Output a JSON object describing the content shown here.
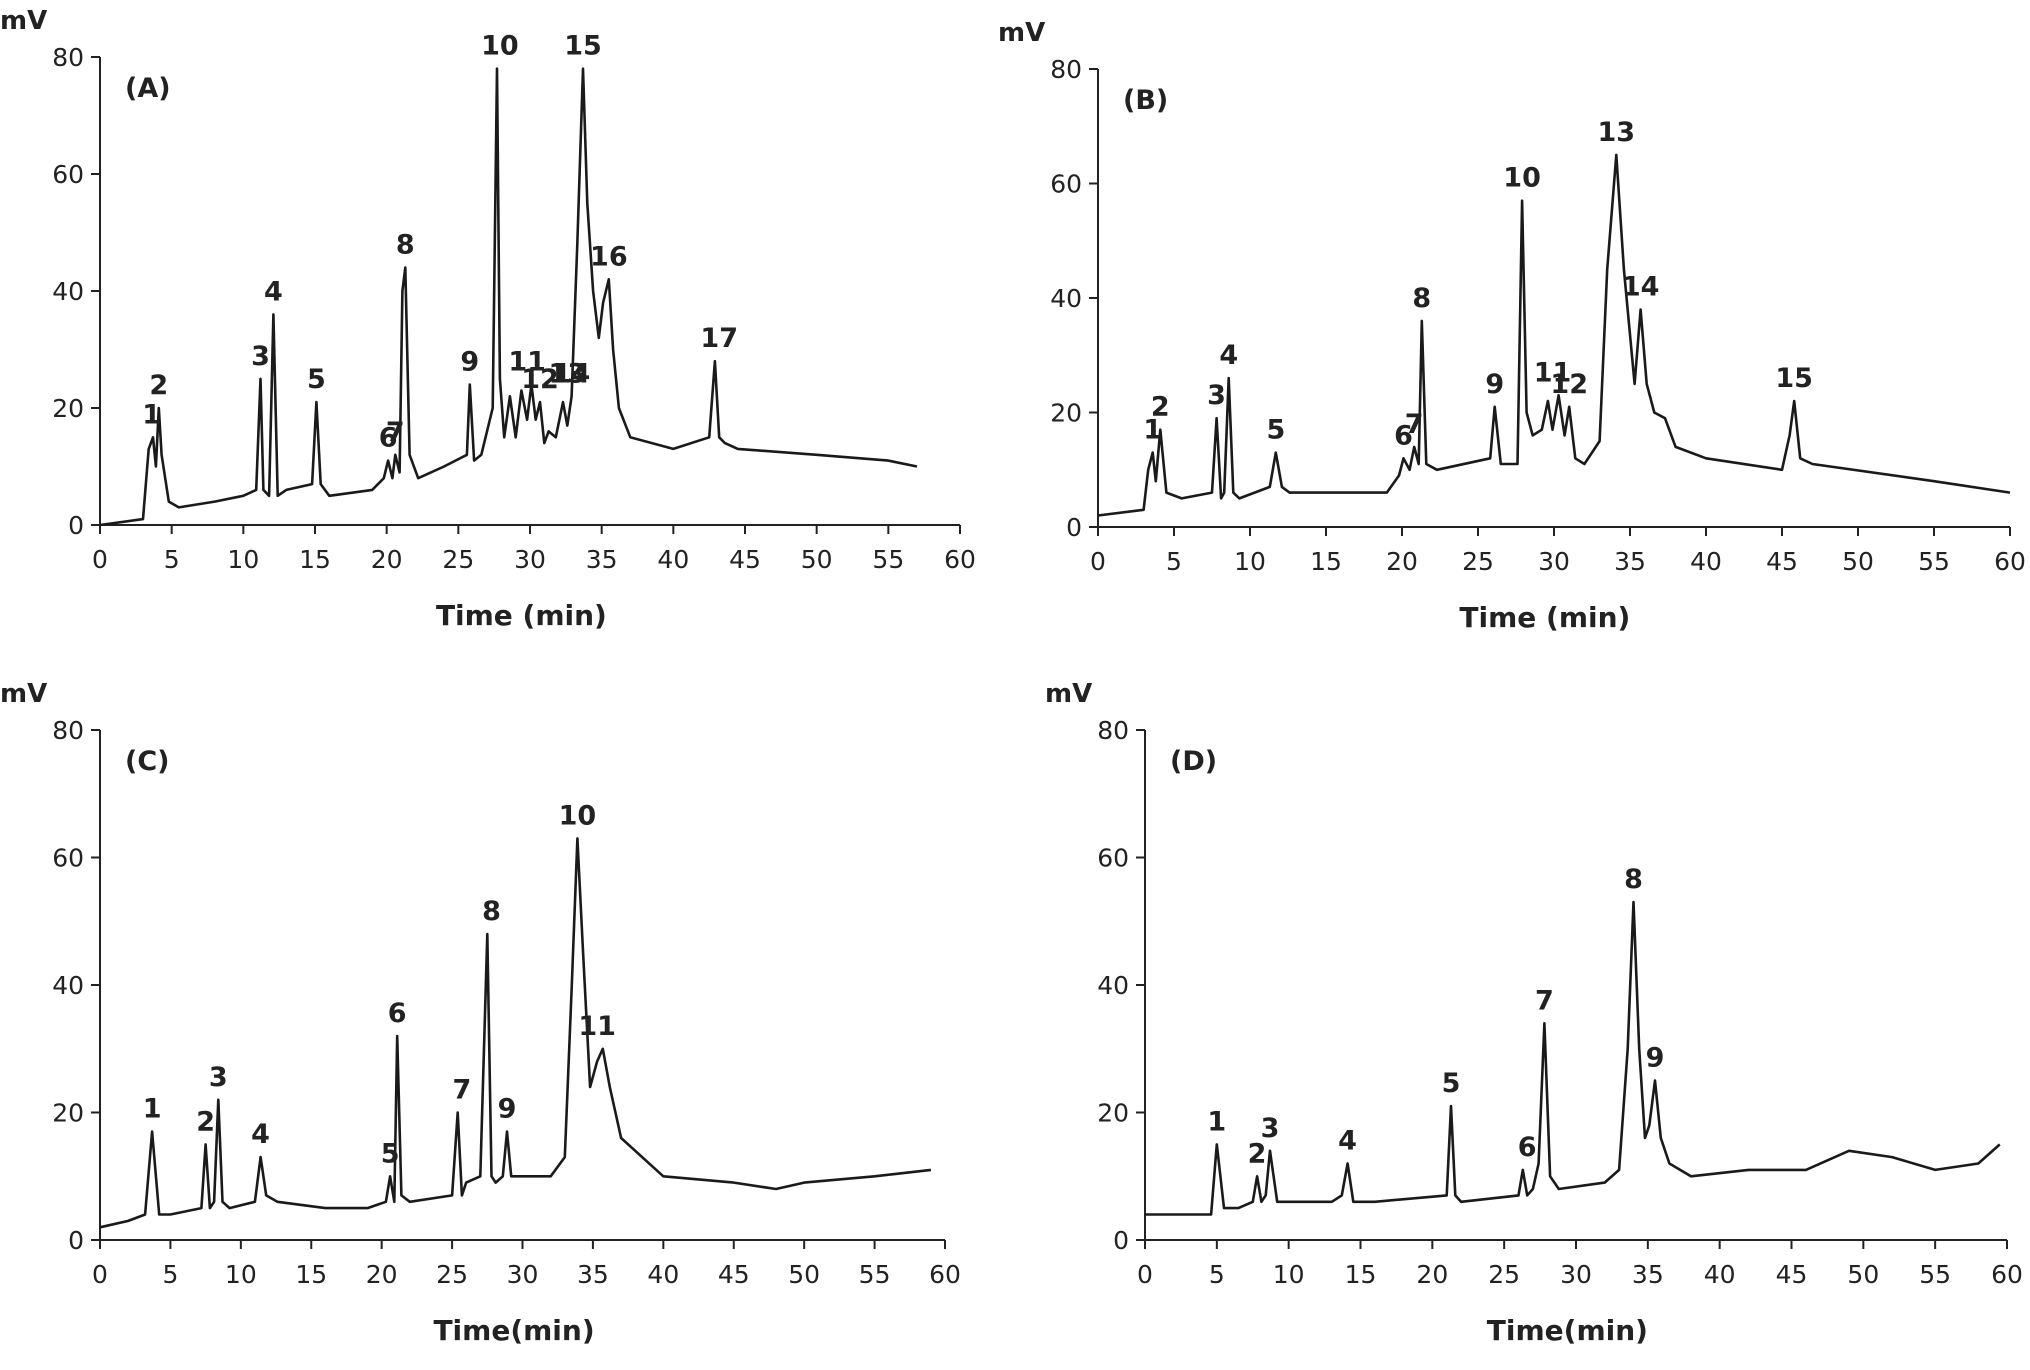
{
  "chart_data": [
    {
      "type": "line",
      "panel_label": "(A)",
      "ylabel": "mV",
      "xlabel": "Time (min)",
      "xlim": [
        0,
        60
      ],
      "ylim": [
        0,
        80
      ],
      "xticks": [
        "0",
        "5",
        "10",
        "15",
        "20",
        "25",
        "30",
        "35",
        "40",
        "45",
        "50",
        "55",
        "60"
      ],
      "yticks": [
        "0",
        "20",
        "40",
        "60",
        "80"
      ],
      "series": [
        {
          "name": "chromatogram A",
          "x": [
            0,
            3,
            3.4,
            3.7,
            3.9,
            4.1,
            4.3,
            4.8,
            5.5,
            8,
            10,
            10.9,
            11.2,
            11.4,
            11.8,
            12.1,
            12.4,
            13,
            14.8,
            15.1,
            15.4,
            16,
            19,
            19.8,
            20.1,
            20.4,
            20.6,
            20.9,
            21.1,
            21.3,
            21.6,
            22.2,
            24,
            25.6,
            25.8,
            26.1,
            26.6,
            27.4,
            27.7,
            27.9,
            28.2,
            28.6,
            29,
            29.4,
            29.8,
            30.1,
            30.4,
            30.7,
            31,
            31.3,
            31.8,
            32.3,
            32.6,
            32.9,
            33.3,
            33.7,
            34,
            34.4,
            34.8,
            35.1,
            35.5,
            35.8,
            36.2,
            37,
            40,
            42.5,
            42.9,
            43.2,
            43.6,
            44.5,
            50,
            55,
            57
          ],
          "y": [
            0,
            1,
            13,
            15,
            10,
            20,
            12,
            4,
            3,
            4,
            5,
            6,
            25,
            6,
            5,
            36,
            5,
            6,
            7,
            21,
            7,
            5,
            6,
            8,
            11,
            8,
            12,
            9,
            40,
            44,
            12,
            8,
            10,
            12,
            24,
            11,
            12,
            20,
            78,
            25,
            15,
            22,
            15,
            23,
            18,
            24,
            18,
            21,
            14,
            16,
            15,
            21,
            17,
            22,
            48,
            78,
            55,
            40,
            32,
            38,
            42,
            30,
            20,
            15,
            13,
            15,
            28,
            15,
            14,
            13,
            12,
            11,
            10
          ],
          "peaks": [
            {
              "label": "1",
              "x": 3.6,
              "y": 15
            },
            {
              "label": "2",
              "x": 4.1,
              "y": 20
            },
            {
              "label": "3",
              "x": 11.2,
              "y": 25
            },
            {
              "label": "4",
              "x": 12.1,
              "y": 36
            },
            {
              "label": "5",
              "x": 15.1,
              "y": 21
            },
            {
              "label": "6",
              "x": 20.1,
              "y": 11
            },
            {
              "label": "7",
              "x": 20.6,
              "y": 12
            },
            {
              "label": "8",
              "x": 21.3,
              "y": 44
            },
            {
              "label": "9",
              "x": 25.8,
              "y": 24
            },
            {
              "label": "10",
              "x": 27.9,
              "y": 78
            },
            {
              "label": "11",
              "x": 29.8,
              "y": 24
            },
            {
              "label": "12",
              "x": 30.7,
              "y": 21
            },
            {
              "label": "13",
              "x": 32.6,
              "y": 22
            },
            {
              "label": "14",
              "x": 32.9,
              "y": 22
            },
            {
              "label": "15",
              "x": 33.7,
              "y": 78
            },
            {
              "label": "16",
              "x": 35.5,
              "y": 42
            },
            {
              "label": "17",
              "x": 43.2,
              "y": 28
            }
          ]
        }
      ]
    },
    {
      "type": "line",
      "panel_label": "(B)",
      "ylabel": "mV",
      "xlabel": "Time (min)",
      "xlim": [
        0,
        60
      ],
      "ylim": [
        0,
        80
      ],
      "xticks": [
        "0",
        "5",
        "10",
        "15",
        "20",
        "25",
        "30",
        "35",
        "40",
        "45",
        "50",
        "55",
        "60"
      ],
      "yticks": [
        "0",
        "20",
        "40",
        "60",
        "80"
      ],
      "series": [
        {
          "name": "chromatogram B",
          "x": [
            0,
            3,
            3.3,
            3.6,
            3.8,
            4.1,
            4.5,
            5.5,
            7.5,
            7.8,
            8.1,
            8.3,
            8.6,
            8.9,
            9.3,
            11.3,
            11.7,
            12.1,
            12.6,
            19,
            19.8,
            20.1,
            20.5,
            20.8,
            21.1,
            21.3,
            21.6,
            22.3,
            25.8,
            26.1,
            26.5,
            27.6,
            27.9,
            28.2,
            28.6,
            29.2,
            29.6,
            29.9,
            30.3,
            30.7,
            31,
            31.4,
            32,
            33,
            33.5,
            34.1,
            34.6,
            35.3,
            35.7,
            36.1,
            36.6,
            37.3,
            38,
            40,
            45,
            45.5,
            45.8,
            46.2,
            47,
            55,
            60
          ],
          "y": [
            2,
            3,
            10,
            13,
            8,
            17,
            6,
            5,
            6,
            19,
            5,
            6,
            26,
            6,
            5,
            7,
            13,
            7,
            6,
            6,
            9,
            12,
            10,
            14,
            11,
            36,
            11,
            10,
            12,
            21,
            11,
            11,
            57,
            20,
            16,
            17,
            22,
            17,
            23,
            16,
            21,
            12,
            11,
            15,
            45,
            65,
            45,
            25,
            38,
            25,
            20,
            19,
            14,
            12,
            10,
            16,
            22,
            12,
            11,
            8,
            6
          ],
          "peaks": [
            {
              "label": "1",
              "x": 3.6,
              "y": 13
            },
            {
              "label": "2",
              "x": 4.1,
              "y": 17
            },
            {
              "label": "3",
              "x": 7.8,
              "y": 19
            },
            {
              "label": "4",
              "x": 8.6,
              "y": 26
            },
            {
              "label": "5",
              "x": 11.7,
              "y": 13
            },
            {
              "label": "6",
              "x": 20.1,
              "y": 12
            },
            {
              "label": "7",
              "x": 20.8,
              "y": 14
            },
            {
              "label": "8",
              "x": 21.3,
              "y": 36
            },
            {
              "label": "9",
              "x": 26.1,
              "y": 21
            },
            {
              "label": "10",
              "x": 27.9,
              "y": 57
            },
            {
              "label": "11",
              "x": 29.9,
              "y": 23
            },
            {
              "label": "12",
              "x": 31,
              "y": 21
            },
            {
              "label": "13",
              "x": 34.1,
              "y": 65
            },
            {
              "label": "14",
              "x": 35.7,
              "y": 38
            },
            {
              "label": "15",
              "x": 45.8,
              "y": 22
            }
          ]
        }
      ]
    },
    {
      "type": "line",
      "panel_label": "(C)",
      "ylabel": "mV",
      "xlabel": "Time(min)",
      "xlim": [
        0,
        60
      ],
      "ylim": [
        0,
        80
      ],
      "xticks": [
        "0",
        "5",
        "10",
        "15",
        "20",
        "25",
        "30",
        "35",
        "40",
        "45",
        "50",
        "55",
        "60"
      ],
      "yticks": [
        "0",
        "20",
        "40",
        "60",
        "80"
      ],
      "series": [
        {
          "name": "chromatogram C",
          "x": [
            0,
            2,
            3.2,
            3.7,
            4.2,
            5,
            7.2,
            7.5,
            7.8,
            8.1,
            8.4,
            8.7,
            9.2,
            11,
            11.4,
            11.8,
            12.6,
            16,
            19,
            20.3,
            20.6,
            20.9,
            21.1,
            21.4,
            22,
            25,
            25.4,
            25.7,
            26,
            27,
            27.5,
            27.8,
            28.1,
            28.6,
            28.9,
            29.2,
            29.8,
            32,
            33,
            33.5,
            33.9,
            34.3,
            34.8,
            35.3,
            35.7,
            36.2,
            37,
            40,
            45,
            48,
            50,
            55,
            59
          ],
          "y": [
            2,
            3,
            4,
            17,
            4,
            4,
            5,
            15,
            5,
            6,
            22,
            6,
            5,
            6,
            13,
            7,
            6,
            5,
            5,
            6,
            10,
            6,
            32,
            7,
            6,
            7,
            20,
            7,
            9,
            10,
            48,
            10,
            9,
            10,
            17,
            10,
            10,
            10,
            13,
            40,
            63,
            45,
            24,
            28,
            30,
            24,
            16,
            10,
            9,
            8,
            9,
            10,
            11
          ],
          "peaks": [
            {
              "label": "1",
              "x": 3.7,
              "y": 17
            },
            {
              "label": "2",
              "x": 7.5,
              "y": 15
            },
            {
              "label": "3",
              "x": 8.4,
              "y": 22
            },
            {
              "label": "4",
              "x": 11.4,
              "y": 13
            },
            {
              "label": "5",
              "x": 20.6,
              "y": 10
            },
            {
              "label": "6",
              "x": 21.1,
              "y": 32
            },
            {
              "label": "7",
              "x": 25.7,
              "y": 20
            },
            {
              "label": "8",
              "x": 27.8,
              "y": 48
            },
            {
              "label": "9",
              "x": 28.9,
              "y": 17
            },
            {
              "label": "10",
              "x": 33.9,
              "y": 63
            },
            {
              "label": "11",
              "x": 35.3,
              "y": 30
            }
          ]
        }
      ]
    },
    {
      "type": "line",
      "panel_label": "(D)",
      "ylabel": "mV",
      "xlabel": "Time(min)",
      "xlim": [
        0,
        60
      ],
      "ylim": [
        0,
        80
      ],
      "xticks": [
        "0",
        "5",
        "10",
        "15",
        "20",
        "25",
        "30",
        "35",
        "40",
        "45",
        "50",
        "55",
        "60"
      ],
      "yticks": [
        "0",
        "20",
        "40",
        "60",
        "80"
      ],
      "series": [
        {
          "name": "chromatogram D",
          "x": [
            0,
            2,
            4.6,
            5,
            5.5,
            6.5,
            7.5,
            7.8,
            8.1,
            8.4,
            8.7,
            9.2,
            13,
            13.7,
            14.1,
            14.5,
            16,
            21,
            21.3,
            21.6,
            22,
            26,
            26.3,
            26.6,
            27,
            27.4,
            27.8,
            28.2,
            28.8,
            32,
            33,
            33.6,
            34,
            34.4,
            34.8,
            35.1,
            35.5,
            35.9,
            36.5,
            38,
            42,
            46,
            49,
            52,
            55,
            58,
            59.5
          ],
          "y": [
            4,
            4,
            4,
            15,
            5,
            5,
            6,
            10,
            6,
            7,
            14,
            6,
            6,
            7,
            12,
            6,
            6,
            7,
            21,
            7,
            6,
            7,
            11,
            7,
            8,
            12,
            34,
            10,
            8,
            9,
            11,
            30,
            53,
            30,
            16,
            18,
            25,
            16,
            12,
            10,
            11,
            11,
            14,
            13,
            11,
            12,
            15
          ],
          "peaks": [
            {
              "label": "1",
              "x": 5,
              "y": 15
            },
            {
              "label": "2",
              "x": 7.8,
              "y": 10
            },
            {
              "label": "3",
              "x": 8.7,
              "y": 14
            },
            {
              "label": "4",
              "x": 14.1,
              "y": 12
            },
            {
              "label": "5",
              "x": 21.3,
              "y": 21
            },
            {
              "label": "6",
              "x": 26.6,
              "y": 11
            },
            {
              "label": "7",
              "x": 27.8,
              "y": 34
            },
            {
              "label": "8",
              "x": 34,
              "y": 53
            },
            {
              "label": "9",
              "x": 35.5,
              "y": 25
            }
          ]
        }
      ]
    }
  ]
}
